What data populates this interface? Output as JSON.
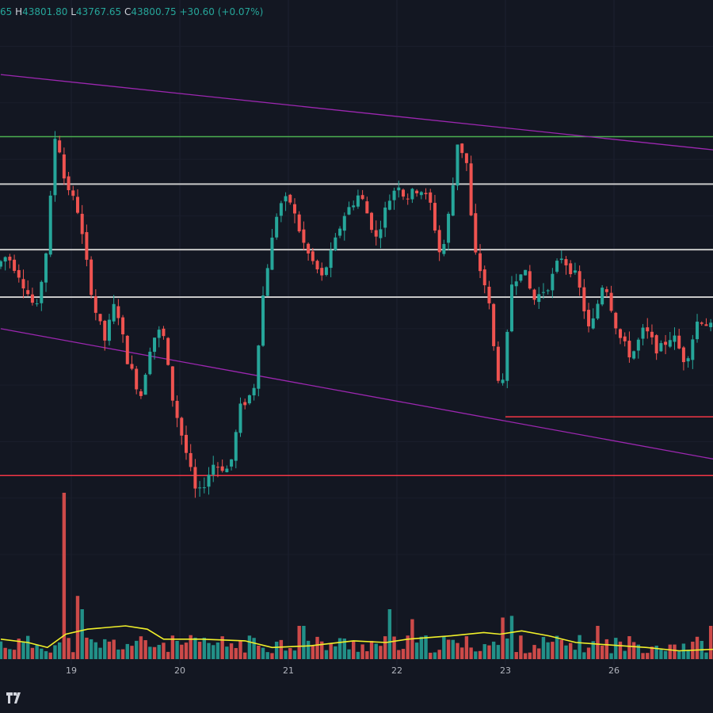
{
  "header": {
    "open_tail": "65",
    "high_label": "H",
    "high": "43801.80",
    "low_label": "L",
    "low": "43767.65",
    "close_label": "C",
    "close": "43800.75",
    "change": "+30.60 (+0.07%)"
  },
  "colors": {
    "background": "#131722",
    "bull": "#26a69a",
    "bear": "#ef5350",
    "green_level": "#4caf50",
    "white_level": "#c8c8c8",
    "red_level": "#f23645",
    "channel": "#9c27b0",
    "volume_ma": "#f0f02a"
  },
  "chart_data": {
    "type": "candlestick",
    "title": "",
    "xlabel": "",
    "ylabel": "",
    "x_ticks": [
      "19",
      "20",
      "21",
      "22",
      "23",
      "26"
    ],
    "ylim": [
      41000,
      45700
    ],
    "horizontal_levels": [
      {
        "price": 44700,
        "color": "green"
      },
      {
        "price": 44280,
        "color": "white"
      },
      {
        "price": 43700,
        "color": "white"
      },
      {
        "price": 43280,
        "color": "white"
      },
      {
        "price": 41700,
        "color": "red"
      }
    ],
    "support_segment": {
      "price": 42220,
      "from_day": 23.0
    },
    "channel_lines": [
      {
        "from": {
          "day": 18.35,
          "price": 45250
        },
        "to": {
          "day": 24.95,
          "price": 44580
        }
      },
      {
        "from": {
          "day": 18.35,
          "price": 43000
        },
        "to": {
          "day": 24.95,
          "price": 41840
        }
      }
    ],
    "price_path": [
      [
        18.35,
        43550
      ],
      [
        18.45,
        43650
      ],
      [
        18.55,
        43500
      ],
      [
        18.72,
        43150
      ],
      [
        18.82,
        43750
      ],
      [
        18.9,
        44800
      ],
      [
        18.97,
        44350
      ],
      [
        19.1,
        44050
      ],
      [
        19.25,
        43200
      ],
      [
        19.35,
        42900
      ],
      [
        19.45,
        43250
      ],
      [
        19.55,
        42750
      ],
      [
        19.68,
        42400
      ],
      [
        19.78,
        42900
      ],
      [
        19.88,
        43000
      ],
      [
        19.97,
        42400
      ],
      [
        20.1,
        41900
      ],
      [
        20.2,
        41500
      ],
      [
        20.35,
        41800
      ],
      [
        20.5,
        41750
      ],
      [
        20.6,
        42300
      ],
      [
        20.72,
        42450
      ],
      [
        20.82,
        43400
      ],
      [
        20.95,
        44100
      ],
      [
        21.05,
        44150
      ],
      [
        21.2,
        43700
      ],
      [
        21.35,
        43450
      ],
      [
        21.45,
        43700
      ],
      [
        21.55,
        44000
      ],
      [
        21.7,
        44200
      ],
      [
        21.85,
        43800
      ],
      [
        21.95,
        44100
      ],
      [
        22.05,
        44300
      ],
      [
        22.12,
        44150
      ],
      [
        22.25,
        44250
      ],
      [
        22.35,
        44100
      ],
      [
        22.45,
        43600
      ],
      [
        22.55,
        44200
      ],
      [
        22.6,
        44650
      ],
      [
        22.68,
        44500
      ],
      [
        22.75,
        43700
      ],
      [
        22.88,
        43300
      ],
      [
        22.96,
        42600
      ],
      [
        23.02,
        42500
      ],
      [
        23.1,
        43400
      ],
      [
        23.2,
        43550
      ],
      [
        23.3,
        43250
      ],
      [
        23.45,
        43400
      ],
      [
        23.55,
        43650
      ],
      [
        23.7,
        43450
      ],
      [
        23.82,
        42950
      ],
      [
        23.95,
        43450
      ],
      [
        24.08,
        42950
      ],
      [
        24.2,
        42750
      ],
      [
        24.32,
        43000
      ],
      [
        24.45,
        42800
      ],
      [
        24.58,
        42950
      ],
      [
        24.7,
        42700
      ],
      [
        24.82,
        43100
      ],
      [
        24.95,
        43000
      ]
    ],
    "volume": {
      "spikes": [
        {
          "day": 18.93,
          "value": 1.0
        },
        {
          "day": 19.05,
          "value": 0.38
        },
        {
          "day": 19.1,
          "value": 0.3
        },
        {
          "day": 21.12,
          "value": 0.2
        },
        {
          "day": 21.95,
          "value": 0.3
        },
        {
          "day": 22.15,
          "value": 0.24
        },
        {
          "day": 22.98,
          "value": 0.25
        },
        {
          "day": 23.06,
          "value": 0.26
        },
        {
          "day": 23.85,
          "value": 0.2
        },
        {
          "day": 24.9,
          "value": 0.2
        }
      ],
      "base_level": 0.1,
      "ma_path": [
        [
          18.35,
          0.12
        ],
        [
          18.6,
          0.1
        ],
        [
          18.78,
          0.07
        ],
        [
          18.95,
          0.15
        ],
        [
          19.15,
          0.18
        ],
        [
          19.5,
          0.2
        ],
        [
          19.7,
          0.18
        ],
        [
          19.85,
          0.12
        ],
        [
          20.2,
          0.12
        ],
        [
          20.6,
          0.11
        ],
        [
          20.85,
          0.07
        ],
        [
          21.2,
          0.08
        ],
        [
          21.6,
          0.11
        ],
        [
          21.9,
          0.1
        ],
        [
          22.1,
          0.12
        ],
        [
          22.5,
          0.14
        ],
        [
          22.8,
          0.16
        ],
        [
          22.95,
          0.15
        ],
        [
          23.15,
          0.17
        ],
        [
          23.4,
          0.14
        ],
        [
          23.65,
          0.1
        ],
        [
          23.85,
          0.09
        ],
        [
          24.3,
          0.07
        ],
        [
          24.6,
          0.05
        ],
        [
          24.95,
          0.06
        ]
      ]
    }
  }
}
